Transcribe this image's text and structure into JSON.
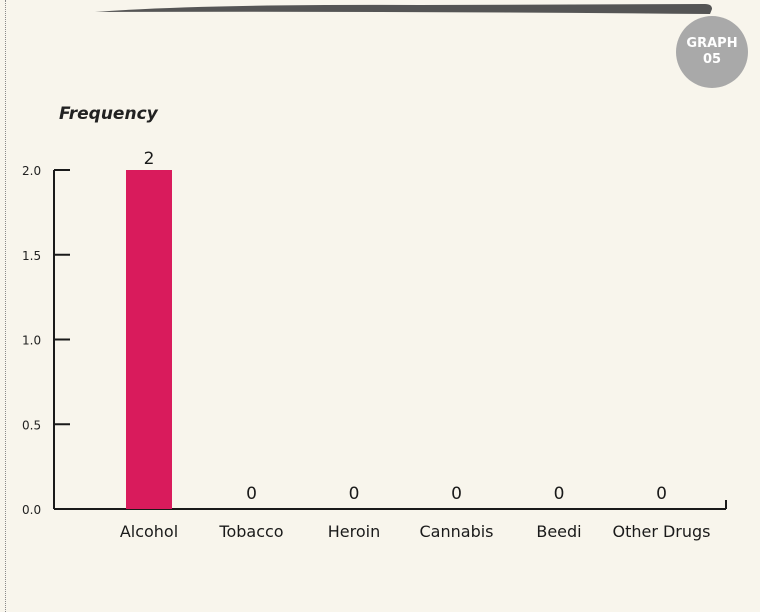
{
  "badge": {
    "line1": "GRAPH",
    "line2": "05"
  },
  "colors": {
    "bar": "#d91b5c",
    "axis": "#1a1a1a",
    "header_bar": "#555555",
    "badge": "#a9a9a9"
  },
  "chart_data": {
    "type": "bar",
    "title": "",
    "xlabel": "",
    "ylabel": "Frequency",
    "categories": [
      "Alcohol",
      "Tobacco",
      "Heroin",
      "Cannabis",
      "Beedi",
      "Other Drugs"
    ],
    "values": [
      2,
      0,
      0,
      0,
      0,
      0
    ],
    "value_labels": [
      "2",
      "0",
      "0",
      "0",
      "0",
      "0"
    ],
    "ylim": [
      0,
      2
    ],
    "yticks": [
      0,
      0.5,
      1,
      1.5,
      2
    ],
    "ytick_labels": [
      "0.0",
      "0.5",
      "1.0",
      "1.5",
      "2.0"
    ],
    "grid": false,
    "legend": "none"
  }
}
